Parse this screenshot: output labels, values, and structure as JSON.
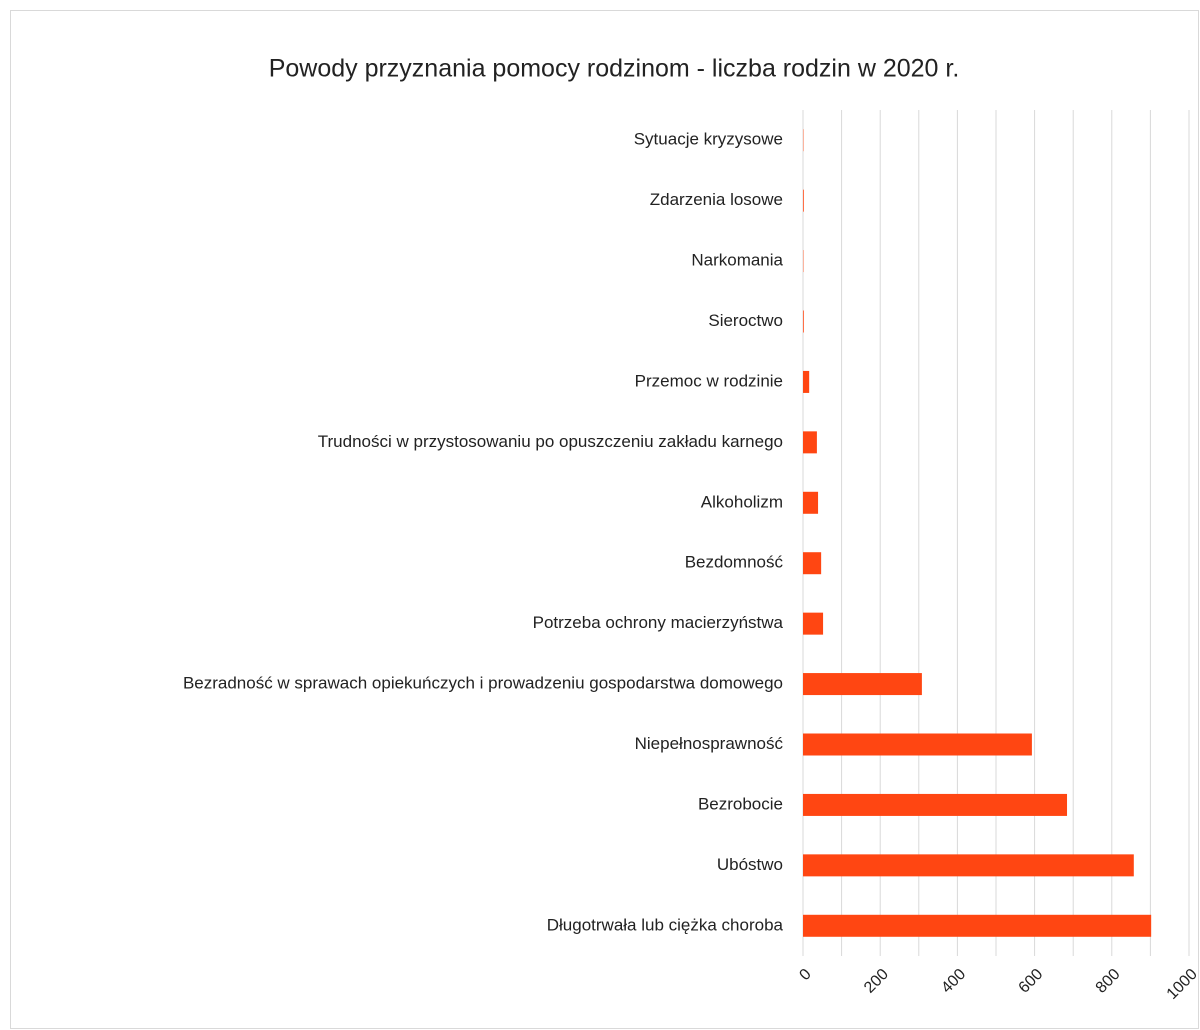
{
  "chart_data": {
    "type": "barh",
    "title": "Powody przyznania pomocy rodzinom - liczba rodzin w 2020 r.",
    "categories": [
      "Sytuacje kryzysowe",
      "Zdarzenia losowe",
      "Narkomania",
      "Sieroctwo",
      "Przemoc w rodzinie",
      "Trudności w przystosowaniu po opuszczeniu zakładu karnego",
      "Alkoholizm",
      "Bezdomność",
      "Potrzeba ochrony macierzyństwa",
      "Bezradność w sprawach opiekuńczych i prowadzeniu gospodarstwa domowego",
      "Niepełnosprawność",
      "Bezrobocie",
      "Ubóstwo",
      "Długotrwała lub ciężka choroba"
    ],
    "values": [
      1,
      2,
      1,
      2,
      16,
      36,
      39,
      47,
      52,
      308,
      593,
      684,
      857,
      902
    ],
    "color": "#ff4612",
    "xlim": [
      0,
      1000
    ],
    "xticks": [
      0,
      200,
      400,
      600,
      800,
      1000
    ],
    "xgrid": [
      0,
      100,
      200,
      300,
      400,
      500,
      600,
      700,
      800,
      900,
      1000
    ],
    "grid": true
  }
}
